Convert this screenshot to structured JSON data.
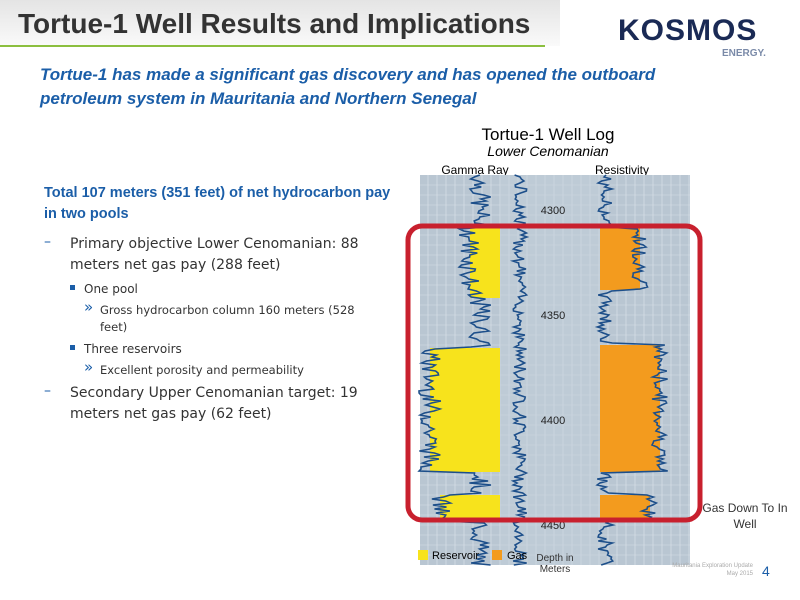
{
  "header": {
    "title": "Tortue-1 Well Results and Implications",
    "subtitle": "Tortue-1 has made a significant gas discovery and has opened the outboard petroleum system in Mauritania and Northern Senegal"
  },
  "logo": {
    "name": "KOSMOS",
    "tagline": "ENERGY."
  },
  "body": {
    "lead": "Total 107 meters (351 feet) of net hydrocarbon pay in two pools",
    "items": [
      {
        "level": 1,
        "text": "Primary objective Lower Cenomanian: 88 meters net gas pay (288 feet)"
      },
      {
        "level": 2,
        "text": "One pool"
      },
      {
        "level": 3,
        "text": "Gross hydrocarbon column 160 meters (528 feet)"
      },
      {
        "level": 2,
        "text": "Three reservoirs"
      },
      {
        "level": 3,
        "text": "Excellent porosity and permeability"
      },
      {
        "level": 1,
        "text": "Secondary Upper Cenomanian target: 19 meters net gas pay (62 feet)"
      }
    ]
  },
  "log": {
    "title": "Tortue-1 Well Log",
    "subtitle": "Lower Cenomanian",
    "track_left": "Gamma Ray",
    "track_right": "Resistivity",
    "depths": [
      "4300",
      "4350",
      "4400",
      "4450"
    ],
    "legend": [
      "Reservoir",
      "Gas"
    ],
    "depth_unit": "Depth in Meters",
    "callout": "Gas Down To In Well"
  },
  "footer": {
    "source": "Mauritania Exploration Update",
    "date": "May 2015",
    "page": "4"
  }
}
